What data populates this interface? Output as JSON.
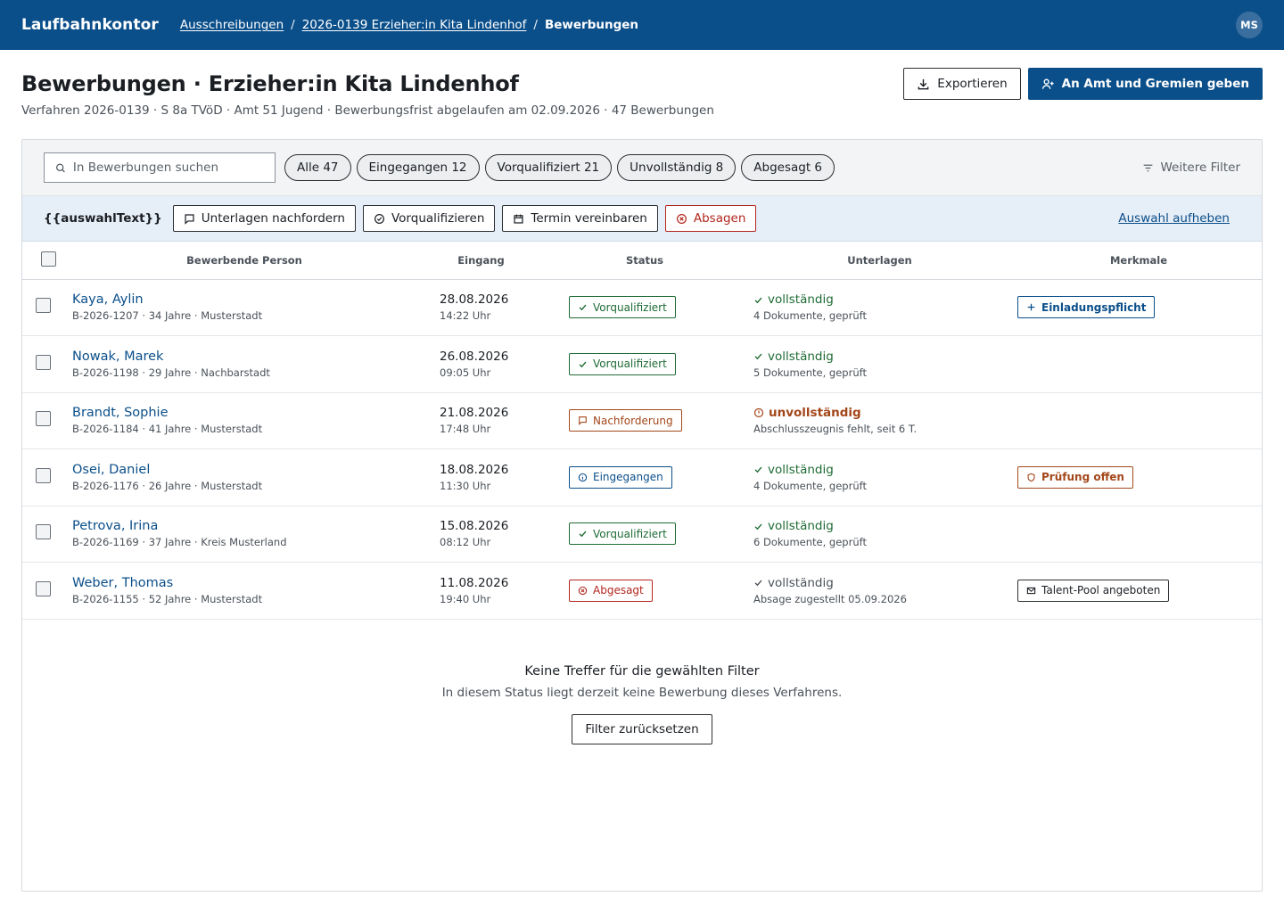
{
  "app": {
    "brand": "Laufbahnkontor",
    "user_initials": "MS"
  },
  "breadcrumb": {
    "items": [
      "Ausschreibungen",
      "2026-0139 Erzieher:in Kita Lindenhof"
    ],
    "current": "Bewerbungen",
    "separator": "/"
  },
  "page": {
    "title": "Bewerbungen · Erzieher:in Kita Lindenhof",
    "meta": "Verfahren 2026-0139 · S 8a TVöD · Amt 51 Jugend · Bewerbungsfrist abgelaufen am 02.09.2026 · 47 Bewerbungen",
    "export_label": "Exportieren",
    "forward_label": "An Amt und Gremien geben"
  },
  "filters": {
    "search_placeholder": "In Bewerbungen suchen",
    "chips": [
      "Alle 47",
      "Eingegangen 12",
      "Vorqualifiziert 21",
      "Unvollständig 8",
      "Abgesagt 6"
    ],
    "more_label": "Weitere Filter"
  },
  "selection": {
    "text": "{{auswahlText}}",
    "actions": [
      "Unterlagen nachfordern",
      "Vorqualifizieren",
      "Termin vereinbaren",
      "Absagen"
    ],
    "clear_label": "Auswahl aufheben"
  },
  "table": {
    "columns": [
      "Bewerbende Person",
      "Eingang",
      "Status",
      "Unterlagen",
      "Merkmale"
    ],
    "rows": [
      {
        "name": "Kaya, Aylin",
        "sub": "B-2026-1207 · 34 Jahre · Musterstadt",
        "date": "28.08.2026",
        "time": "14:22 Uhr",
        "status": "Vorqualifiziert",
        "status_kind": "green",
        "docs": "vollständig",
        "docs_kind": "ok",
        "docs_sub": "4 Dokumente, geprüft",
        "tag": "Einladungspflicht",
        "tag_kind": "blue"
      },
      {
        "name": "Nowak, Marek",
        "sub": "B-2026-1198 · 29 Jahre · Nachbarstadt",
        "date": "26.08.2026",
        "time": "09:05 Uhr",
        "status": "Vorqualifiziert",
        "status_kind": "green",
        "docs": "vollständig",
        "docs_kind": "ok",
        "docs_sub": "5 Dokumente, geprüft",
        "tag": "",
        "tag_kind": ""
      },
      {
        "name": "Brandt, Sophie",
        "sub": "B-2026-1184 · 41 Jahre · Musterstadt",
        "date": "21.08.2026",
        "time": "17:48 Uhr",
        "status": "Nachforderung",
        "status_kind": "orange",
        "docs": "unvollständig",
        "docs_kind": "bad",
        "docs_sub": "Abschlusszeugnis fehlt, seit 6 T.",
        "tag": "",
        "tag_kind": ""
      },
      {
        "name": "Osei, Daniel",
        "sub": "B-2026-1176 · 26 Jahre · Musterstadt",
        "date": "18.08.2026",
        "time": "11:30 Uhr",
        "status": "Eingegangen",
        "status_kind": "blue",
        "docs": "vollständig",
        "docs_kind": "ok",
        "docs_sub": "4 Dokumente, geprüft",
        "tag": "Prüfung offen",
        "tag_kind": "orange"
      },
      {
        "name": "Petrova, Irina",
        "sub": "B-2026-1169 · 37 Jahre · Kreis Musterland",
        "date": "15.08.2026",
        "time": "08:12 Uhr",
        "status": "Vorqualifiziert",
        "status_kind": "green",
        "docs": "vollständig",
        "docs_kind": "ok",
        "docs_sub": "6 Dokumente, geprüft",
        "tag": "",
        "tag_kind": ""
      },
      {
        "name": "Weber, Thomas",
        "sub": "B-2026-1155 · 52 Jahre · Musterstadt",
        "date": "11.08.2026",
        "time": "19:40 Uhr",
        "status": "Abgesagt",
        "status_kind": "red",
        "docs": "vollständig",
        "docs_kind": "muted",
        "docs_sub": "Absage zugestellt 05.09.2026",
        "tag": "Talent-Pool angeboten",
        "tag_kind": "dark"
      }
    ]
  },
  "empty": {
    "title": "Keine Treffer für die gewählten Filter",
    "text": "In diesem Status liegt derzeit keine Bewerbung dieses Verfahrens.",
    "reset_label": "Filter zurücksetzen"
  }
}
